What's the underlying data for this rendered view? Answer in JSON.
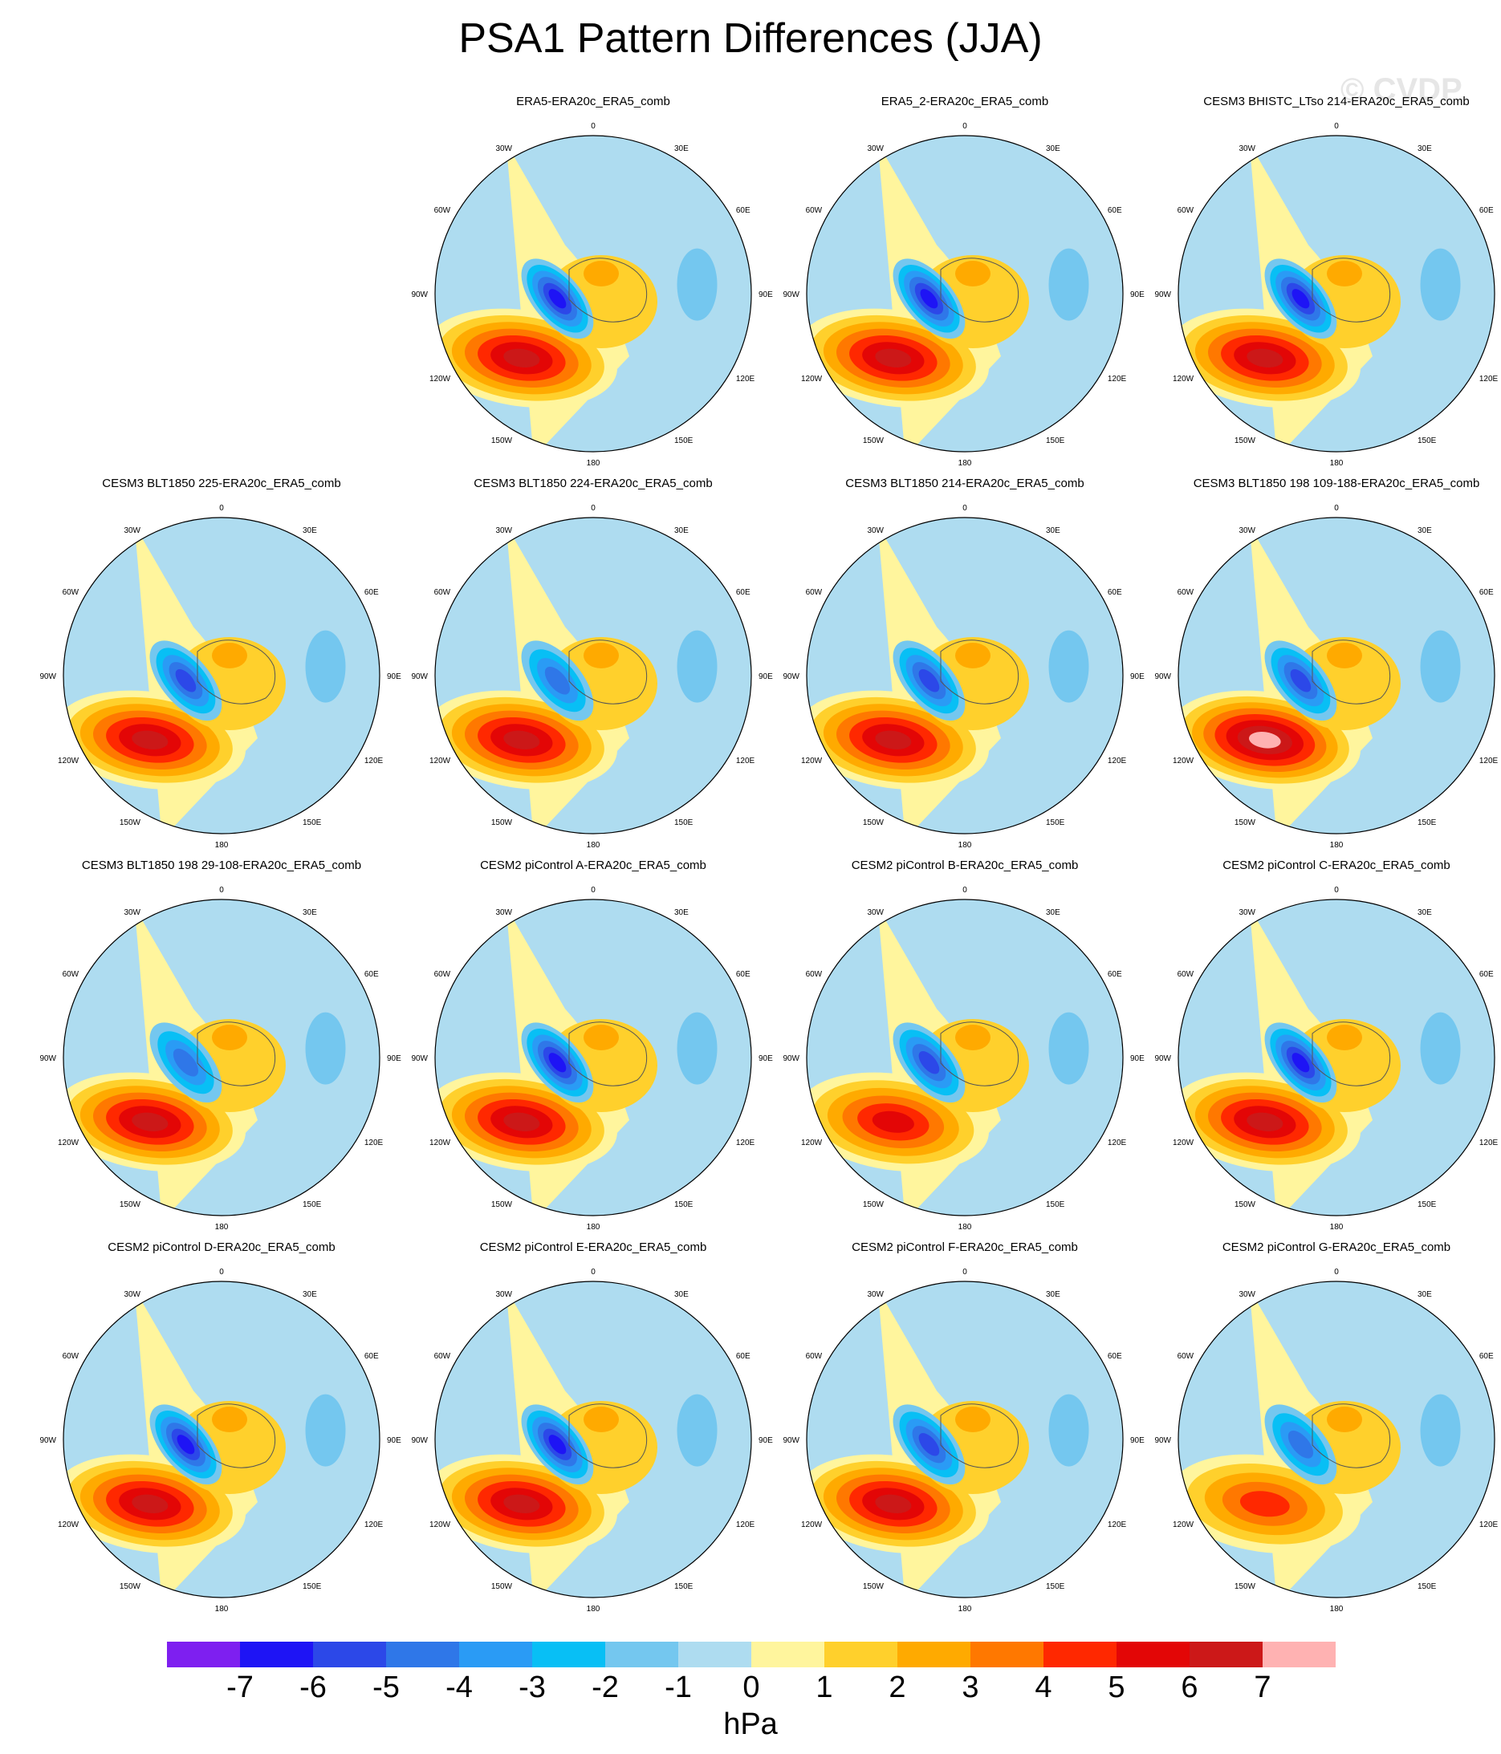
{
  "title": "PSA1 Pattern Differences (JJA)",
  "watermark": "© CVDP",
  "chart_data": {
    "type": "contour-map-grid",
    "projection": "south-polar-stereographic",
    "variable": "sea level pressure difference",
    "units": "hPa",
    "lon_labels": [
      "0",
      "30E",
      "60E",
      "90E",
      "120E",
      "150E",
      "180",
      "150W",
      "120W",
      "90W",
      "60W",
      "30W"
    ],
    "colorbar": {
      "levels": [
        "-7",
        "-6",
        "-5",
        "-4",
        "-3",
        "-2",
        "-1",
        "0",
        "1",
        "2",
        "3",
        "4",
        "5",
        "6",
        "7"
      ],
      "colors": [
        "#7e1ff0",
        "#1e14f5",
        "#2c48e8",
        "#2f77e8",
        "#2a9bf5",
        "#08bff5",
        "#74c7ef",
        "#aedcf0",
        "#fff59d",
        "#ffd02c",
        "#ffaa00",
        "#ff7800",
        "#ff2800",
        "#e30606",
        "#cc1818",
        "#ffb2b2"
      ],
      "label": "hPa"
    },
    "panels": [
      {
        "slot": 1,
        "title": "ERA5-ERA20c_ERA5_comb",
        "lowMin": -6,
        "highMax": 6
      },
      {
        "slot": 2,
        "title": "ERA5_2-ERA20c_ERA5_comb",
        "lowMin": -6,
        "highMax": 6
      },
      {
        "slot": 3,
        "title": "CESM3 BHISTC_LTso 214-ERA20c_ERA5_comb",
        "lowMin": -6,
        "highMax": 6
      },
      {
        "slot": 4,
        "title": "CESM3 BLT1850 225-ERA20c_ERA5_comb",
        "lowMin": -5,
        "highMax": 6
      },
      {
        "slot": 5,
        "title": "CESM3 BLT1850 224-ERA20c_ERA5_comb",
        "lowMin": -4,
        "highMax": 6
      },
      {
        "slot": 6,
        "title": "CESM3 BLT1850 214-ERA20c_ERA5_comb",
        "lowMin": -5,
        "highMax": 6
      },
      {
        "slot": 7,
        "title": "CESM3 BLT1850 198 109-188-ERA20c_ERA5_comb",
        "lowMin": -5,
        "highMax": 7
      },
      {
        "slot": 8,
        "title": "CESM3 BLT1850 198 29-108-ERA20c_ERA5_comb",
        "lowMin": -4,
        "highMax": 6
      },
      {
        "slot": 9,
        "title": "CESM2 piControl A-ERA20c_ERA5_comb",
        "lowMin": -6,
        "highMax": 6
      },
      {
        "slot": 10,
        "title": "CESM2 piControl B-ERA20c_ERA5_comb",
        "lowMin": -5,
        "highMax": 5
      },
      {
        "slot": 11,
        "title": "CESM2 piControl C-ERA20c_ERA5_comb",
        "lowMin": -6,
        "highMax": 6
      },
      {
        "slot": 12,
        "title": "CESM2 piControl D-ERA20c_ERA5_comb",
        "lowMin": -6,
        "highMax": 6
      },
      {
        "slot": 13,
        "title": "CESM2 piControl E-ERA20c_ERA5_comb",
        "lowMin": -6,
        "highMax": 6
      },
      {
        "slot": 14,
        "title": "CESM2 piControl F-ERA20c_ERA5_comb",
        "lowMin": -5,
        "highMax": 6
      },
      {
        "slot": 15,
        "title": "CESM2 piControl G-ERA20c_ERA5_comb",
        "lowMin": -4,
        "highMax": 4
      }
    ]
  }
}
